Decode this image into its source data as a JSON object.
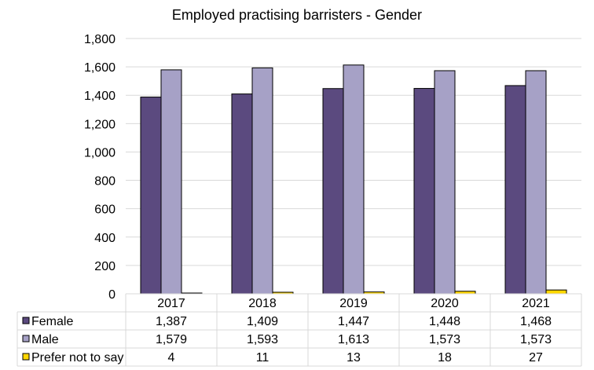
{
  "chart_data": {
    "type": "bar",
    "title": "Employed practising barristers - Gender",
    "xlabel": "",
    "ylabel": "",
    "ylim": [
      0,
      1800
    ],
    "yticks": [
      0,
      200,
      400,
      600,
      800,
      1000,
      1200,
      1400,
      1600,
      1800
    ],
    "ytick_labels": [
      "0",
      "200",
      "400",
      "600",
      "800",
      "1,000",
      "1,200",
      "1,400",
      "1,600",
      "1,800"
    ],
    "grid": true,
    "legend": "data-table-below",
    "categories": [
      "2017",
      "2018",
      "2019",
      "2020",
      "2021"
    ],
    "series": [
      {
        "name": "Female",
        "color": "#5b4a7f",
        "values": [
          1387,
          1409,
          1447,
          1448,
          1468
        ],
        "labels": [
          "1,387",
          "1,409",
          "1,447",
          "1,448",
          "1,468"
        ]
      },
      {
        "name": "Male",
        "color": "#a6a1c6",
        "values": [
          1579,
          1593,
          1613,
          1573,
          1573
        ],
        "labels": [
          "1,579",
          "1,593",
          "1,613",
          "1,573",
          "1,573"
        ]
      },
      {
        "name": "Prefer not to say",
        "color": "#ffd700",
        "values": [
          4,
          11,
          13,
          18,
          27
        ],
        "labels": [
          "4",
          "11",
          "13",
          "18",
          "27"
        ]
      }
    ]
  }
}
